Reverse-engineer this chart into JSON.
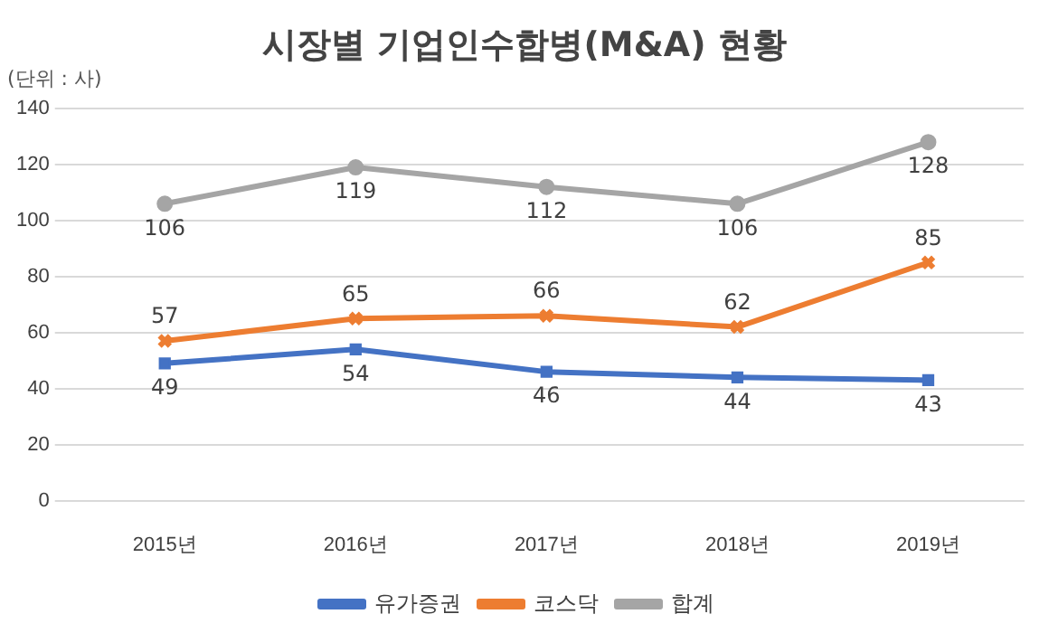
{
  "chart_data": {
    "type": "line",
    "title": "시장별 기업인수합병(M&A) 현황",
    "ylabel": "(단위 : 사)",
    "categories": [
      "2015년",
      "2016년",
      "2017년",
      "2018년",
      "2019년"
    ],
    "series": [
      {
        "name": "유가증권",
        "color": "#4472c4",
        "marker": "square",
        "values": [
          49,
          54,
          46,
          44,
          43
        ]
      },
      {
        "name": "코스닥",
        "color": "#ed7d31",
        "marker": "cross",
        "values": [
          57,
          65,
          66,
          62,
          85
        ]
      },
      {
        "name": "합계",
        "color": "#a5a5a5",
        "marker": "circle",
        "values": [
          106,
          119,
          112,
          106,
          128
        ]
      }
    ],
    "ylim": [
      0,
      140
    ],
    "yticks": [
      0,
      20,
      40,
      60,
      80,
      100,
      120,
      140
    ],
    "grid": "y",
    "legend": "bottom",
    "data_labels": true,
    "line_style": "solid"
  }
}
